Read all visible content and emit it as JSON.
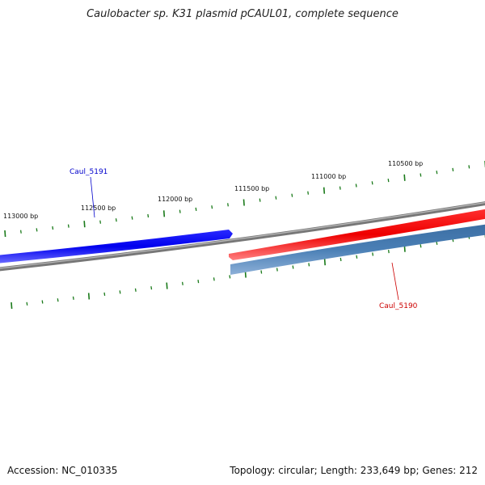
{
  "title": "Caulobacter sp. K31 plasmid pCAUL01, complete sequence",
  "accession_text": "Accession: NC_010335",
  "topology_text": "Topology: circular; Length: 233,649 bp; Genes: 212",
  "ticks": [
    {
      "label": "113000 bp",
      "value": 113000
    },
    {
      "label": "112500 bp",
      "value": 112500
    },
    {
      "label": "112000 bp",
      "value": 112000
    },
    {
      "label": "111500 bp",
      "value": 111500
    },
    {
      "label": "111000 bp",
      "value": 111000
    },
    {
      "label": "110500 bp",
      "value": 110500
    }
  ],
  "genes": [
    {
      "name": "Caul_5191",
      "strand": "forward",
      "color": "#0000ee"
    },
    {
      "name": "Caul_5190",
      "strand": "reverse",
      "color": "#cc0000"
    }
  ],
  "colors": {
    "backbone": "#888888",
    "tick": "#1a7a1a",
    "blue_feature": "#0000ff",
    "red_feature": "#ff0000",
    "steel_feature": "#4a7fb5"
  }
}
